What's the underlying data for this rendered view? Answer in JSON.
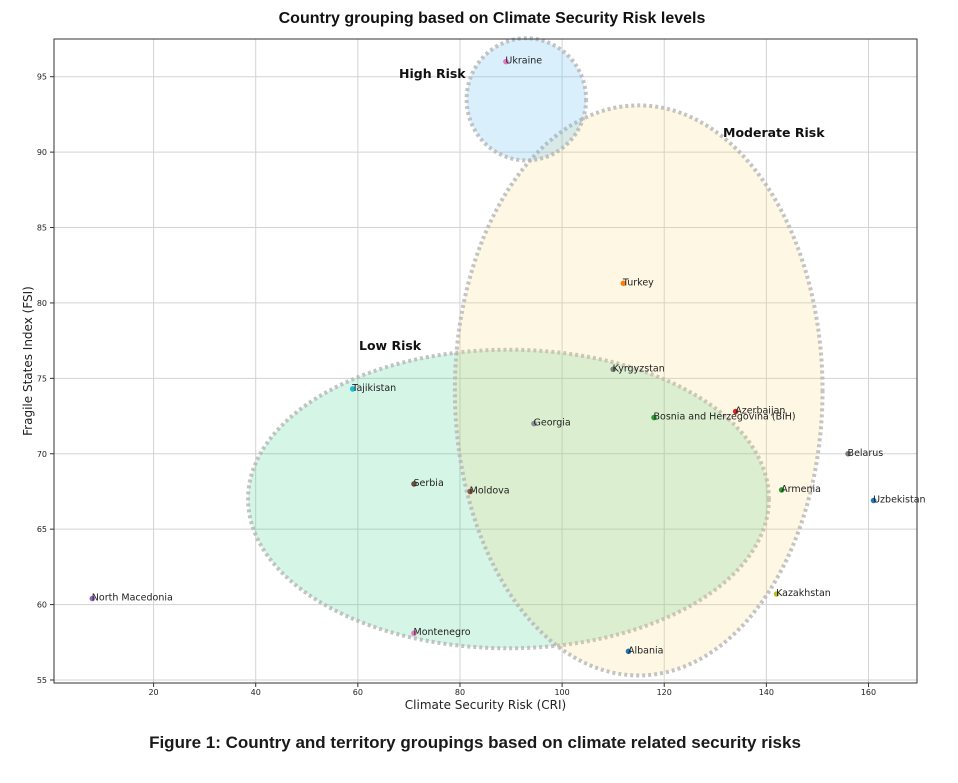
{
  "chart_data": {
    "type": "scatter",
    "title": "Country grouping based on Climate Security Risk levels",
    "xlabel": "Climate Security Risk (CRI)",
    "ylabel": "Fragile States Index (FSI)",
    "xlim": [
      0.5,
      169.5
    ],
    "ylim": [
      54.8,
      97.5
    ],
    "x_ticks": [
      20,
      40,
      60,
      80,
      100,
      120,
      140,
      160
    ],
    "y_ticks": [
      55,
      60,
      65,
      70,
      75,
      80,
      85,
      90,
      95
    ],
    "grid": true,
    "points": [
      {
        "label": "Ukraine",
        "x": 89,
        "y": 96.0,
        "color": "#e377c2"
      },
      {
        "label": "Turkey",
        "x": 112,
        "y": 81.3,
        "color": "#ff7f0e"
      },
      {
        "label": "Kyrgyzstan",
        "x": 110,
        "y": 75.6,
        "color": "#7f7f7f"
      },
      {
        "label": "Tajikistan",
        "x": 59,
        "y": 74.3,
        "color": "#17becf"
      },
      {
        "label": "Azerbaijan",
        "x": 134,
        "y": 72.8,
        "color": "#d62728"
      },
      {
        "label": "Bosnia and Herzegovina (BiH)",
        "x": 118,
        "y": 72.4,
        "color": "#2ca02c"
      },
      {
        "label": "Georgia",
        "x": 94.5,
        "y": 72.0,
        "color": "#8c8c9c"
      },
      {
        "label": "Belarus",
        "x": 156,
        "y": 70.0,
        "color": "#7f7f7f"
      },
      {
        "label": "Serbia",
        "x": 71,
        "y": 68.0,
        "color": "#6b4f3a"
      },
      {
        "label": "Armenia",
        "x": 143,
        "y": 67.6,
        "color": "#2ca02c"
      },
      {
        "label": "Moldova",
        "x": 82,
        "y": 67.5,
        "color": "#8c564b"
      },
      {
        "label": "Uzbekistan",
        "x": 161,
        "y": 66.9,
        "color": "#1f77b4"
      },
      {
        "label": "Kazakhstan",
        "x": 142,
        "y": 60.7,
        "color": "#bcbd22"
      },
      {
        "label": "North Macedonia",
        "x": 8,
        "y": 60.4,
        "color": "#9467bd"
      },
      {
        "label": "Montenegro",
        "x": 71,
        "y": 58.1,
        "color": "#e377c2"
      },
      {
        "label": "Albania",
        "x": 113,
        "y": 56.9,
        "color": "#1f77b4"
      }
    ],
    "groups": [
      {
        "label": "Low Risk",
        "cx": 89.5,
        "cy": 67.0,
        "rx": 51,
        "ry": 9.9,
        "fill": "#2ecc88",
        "fill_opacity": 0.2
      },
      {
        "label": "Moderate Risk",
        "cx": 115,
        "cy": 74.2,
        "rx": 36,
        "ry": 18.9,
        "fill": "#f5d87a",
        "fill_opacity": 0.2
      },
      {
        "label": "High Risk",
        "cx": 93,
        "cy": 93.5,
        "rx": 11.7,
        "ry": 4.05,
        "fill": "#6cc0f5",
        "fill_opacity": 0.25
      }
    ]
  },
  "caption": "Figure 1: Country and territory groupings based on climate related security risks"
}
